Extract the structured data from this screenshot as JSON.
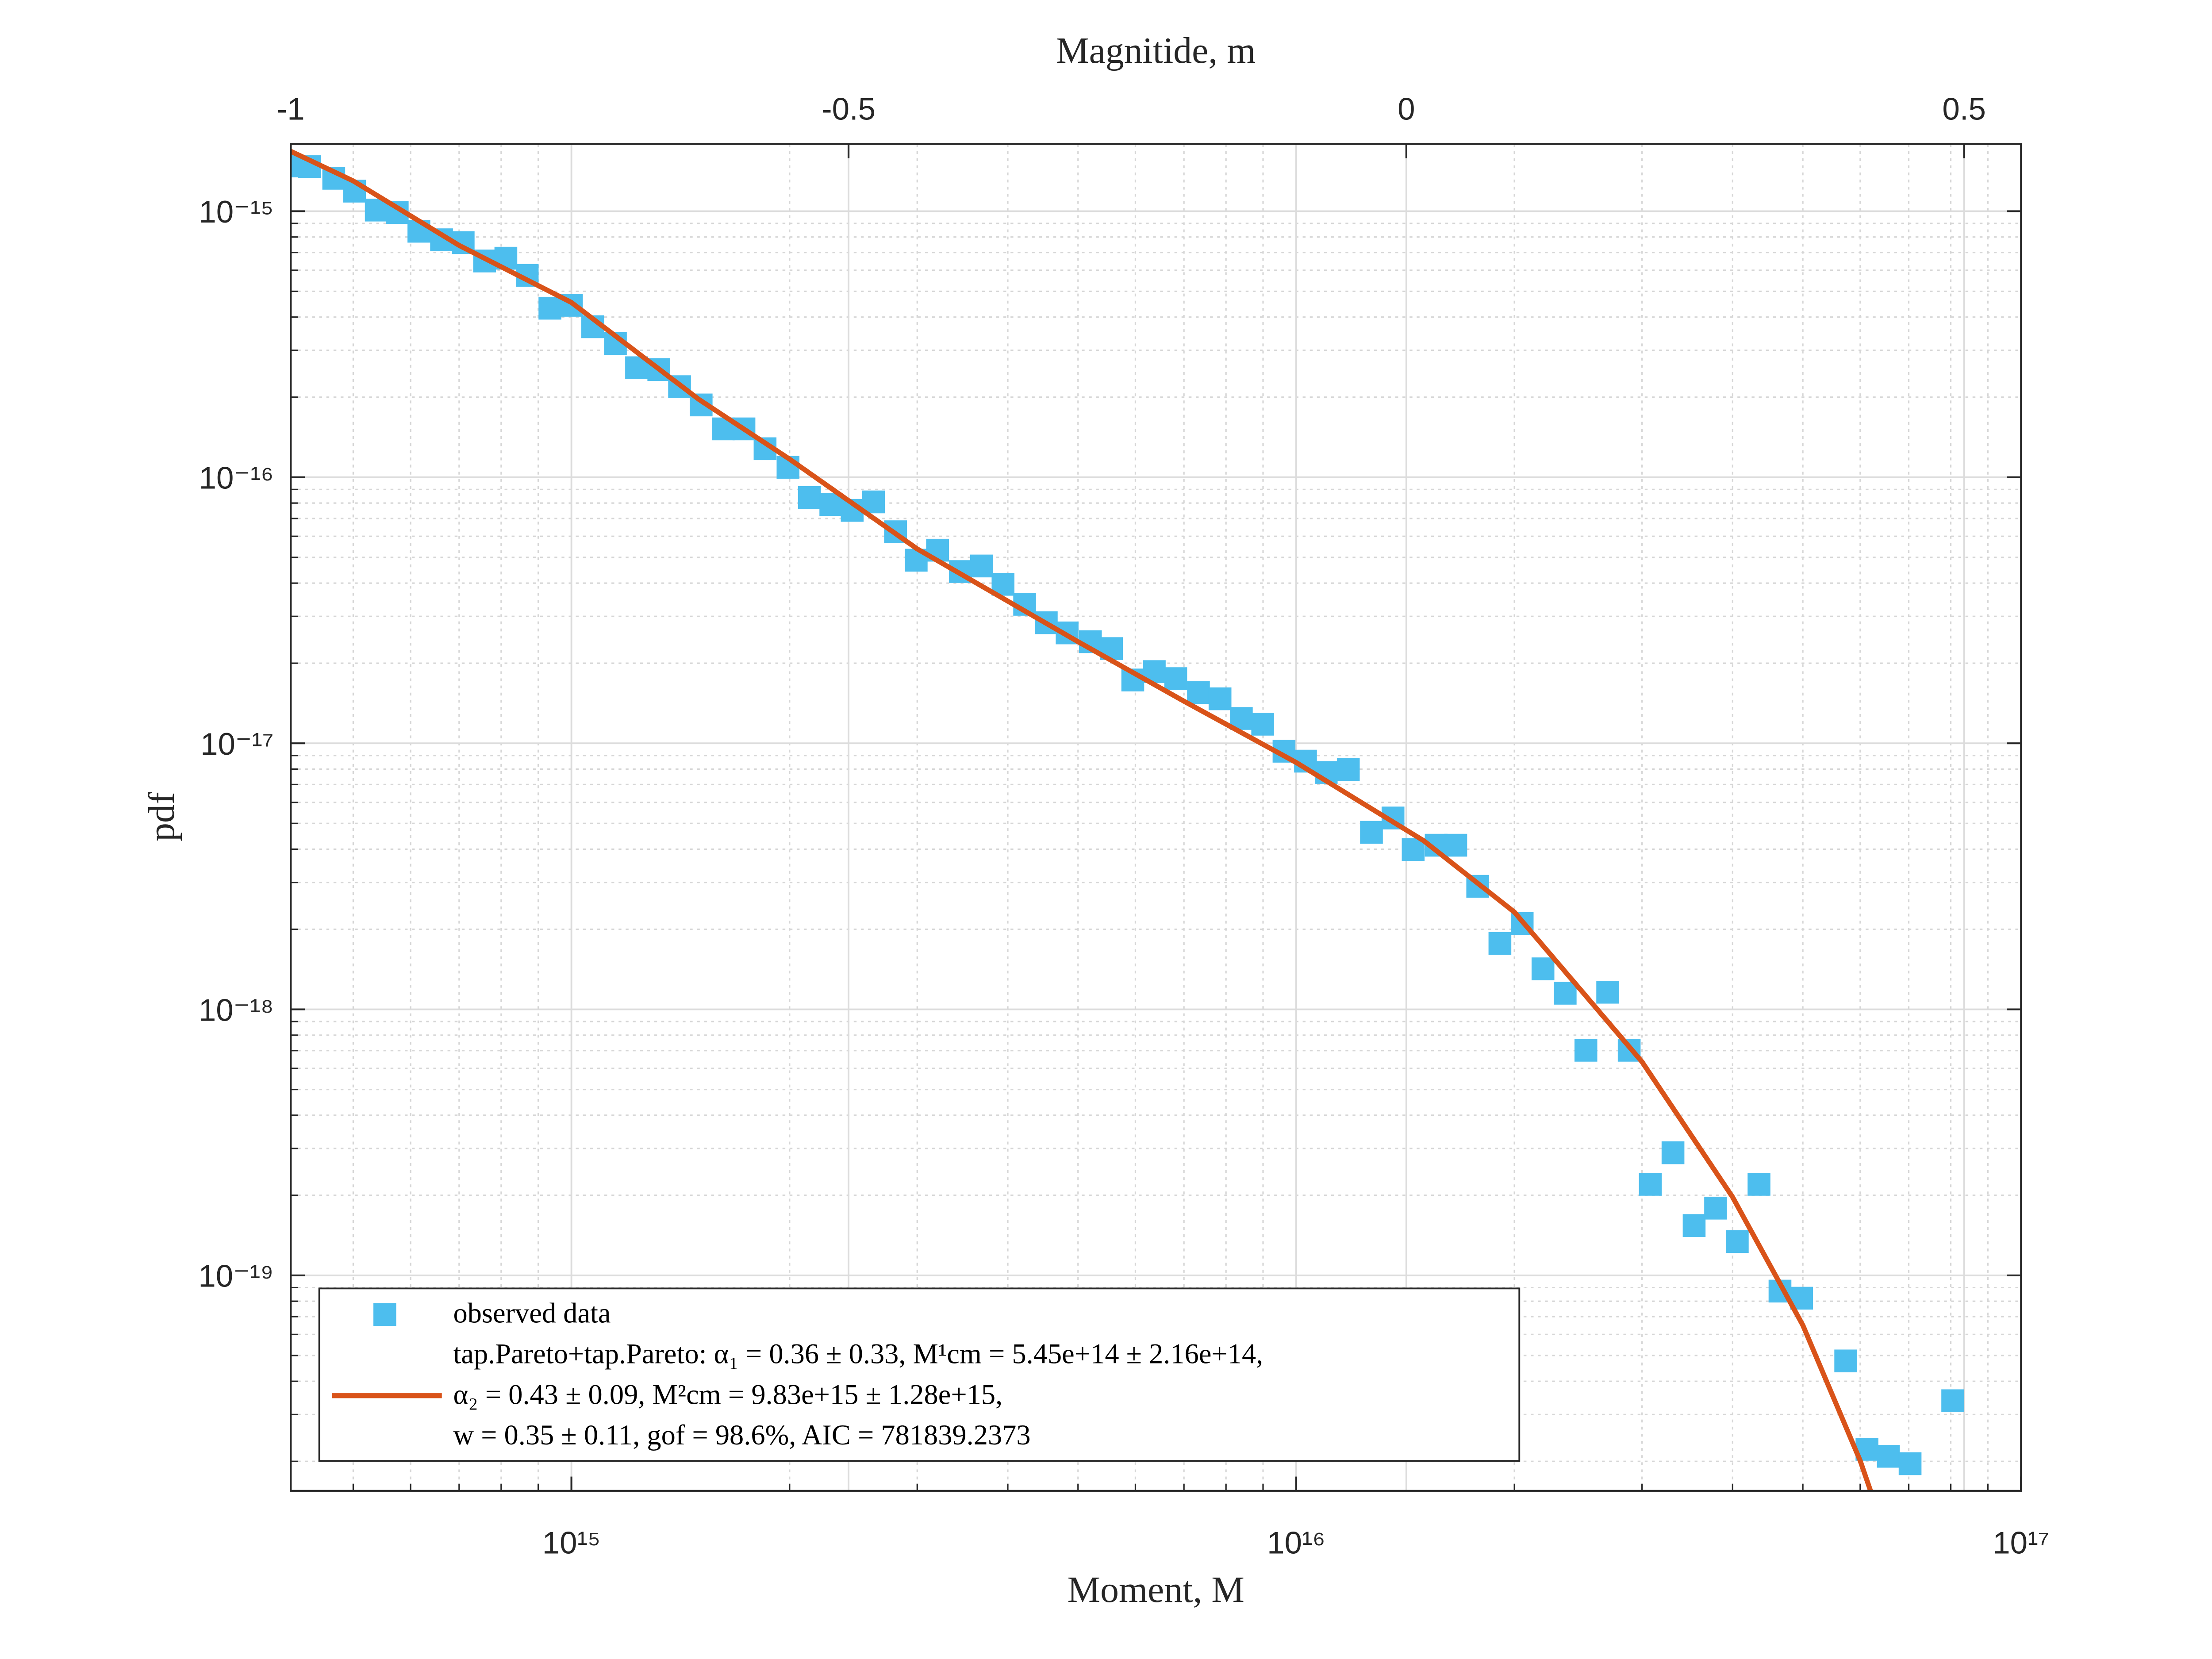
{
  "chart_data": {
    "type": "scatter",
    "xlabel": "Moment, M",
    "ylabel": "pdf",
    "x2label": "Magnitide, m",
    "xscale": "log",
    "yscale": "log",
    "grid": true,
    "minor_grid": true,
    "legend_loc": "lower left",
    "xlim": [
      410000000000000.0,
      1e+17
    ],
    "ylim": [
      1.55e-20,
      1.79e-15
    ],
    "xticks": [
      {
        "value": 1000000000000000.0,
        "label": "10¹⁵"
      },
      {
        "value": 1e+16,
        "label": "10¹⁶"
      },
      {
        "value": 1e+17,
        "label": "10¹⁷"
      }
    ],
    "yticks": [
      {
        "value": 1e-19,
        "label": "10⁻¹⁹"
      },
      {
        "value": 1e-18,
        "label": "10⁻¹⁸"
      },
      {
        "value": 1e-17,
        "label": "10⁻¹⁷"
      },
      {
        "value": 1e-16,
        "label": "10⁻¹⁶"
      },
      {
        "value": 1e-15,
        "label": "10⁻¹⁵"
      }
    ],
    "x2lim": [
      -1,
      0.551
    ],
    "x2ticks": [
      -1,
      -0.5,
      0,
      0.5
    ],
    "series": [
      {
        "name": "observed data",
        "type": "scatter",
        "marker": "square",
        "color": "#4DBEEE",
        "x": [
          410000000000000.0,
          435000000000000.0,
          470000000000000.0,
          502000000000000.0,
          538000000000000.0,
          575000000000000.0,
          616000000000000.0,
          662000000000000.0,
          709000000000000.0,
          759000000000000.0,
          812000000000000.0,
          869000000000000.0,
          934000000000000.0,
          1000000000000000.0,
          1070000000000000.0,
          1150000000000000.0,
          1230000000000000.0,
          1320000000000000.0,
          1410000000000000.0,
          1510000000000000.0,
          1620000000000000.0,
          1730000000000000.0,
          1850000000000000.0,
          1990000000000000.0,
          2130000000000000.0,
          2280000000000000.0,
          2440000000000000.0,
          2610000000000000.0,
          2800000000000000.0,
          2990000000000000.0,
          3200000000000000.0,
          3440000000000000.0,
          3680000000000000.0,
          3940000000000000.0,
          4220000000000000.0,
          4520000000000000.0,
          4830000000000000.0,
          5200000000000000.0,
          5560000000000000.0,
          5950000000000000.0,
          6370000000000000.0,
          6820000000000000.0,
          7330000000000000.0,
          7850000000000000.0,
          8400000000000000.0,
          8990000000000000.0,
          9620000000000000.0,
          1.03e+16,
          1.1e+16,
          1.18e+16,
          1.27e+16,
          1.36e+16,
          1.45e+16,
          1.56e+16,
          1.66e+16,
          1.78e+16,
          1.91e+16,
          2.05e+16,
          2.19e+16,
          2.35e+16,
          2.51e+16,
          2.69e+16,
          2.88e+16,
          3.08e+16,
          3.31e+16,
          3.54e+16,
          3.79e+16,
          4.06e+16,
          4.35e+16,
          4.65e+16,
          4.98e+16,
          5.73e+16,
          6.13e+16,
          6.56e+16,
          7.03e+16,
          8.05e+16
        ],
        "values": [
          1.48e-15,
          1.47e-15,
          1.33e-15,
          1.19e-15,
          1.01e-15,
          9.88e-16,
          8.41e-16,
          7.81e-16,
          7.62e-16,
          6.5e-16,
          6.66e-16,
          5.74e-16,
          4.32e-16,
          4.43e-16,
          3.68e-16,
          3.18e-16,
          2.58e-16,
          2.54e-16,
          2.19e-16,
          1.87e-16,
          1.52e-16,
          1.52e-16,
          1.28e-16,
          1.09e-16,
          8.39e-17,
          7.89e-17,
          7.51e-17,
          8.08e-17,
          6.24e-17,
          4.88e-17,
          5.32e-17,
          4.42e-17,
          4.64e-17,
          3.96e-17,
          3.33e-17,
          2.84e-17,
          2.6e-17,
          2.41e-17,
          2.27e-17,
          1.73e-17,
          1.86e-17,
          1.75e-17,
          1.55e-17,
          1.47e-17,
          1.24e-17,
          1.18e-17,
          9.34e-18,
          8.57e-18,
          7.77e-18,
          7.96e-18,
          4.63e-18,
          5.24e-18,
          3.99e-18,
          4.14e-18,
          4.14e-18,
          2.9e-18,
          1.77e-18,
          2.1e-18,
          1.42e-18,
          1.15e-18,
          7.02e-19,
          1.16e-18,
          7.02e-19,
          2.2e-19,
          2.89e-19,
          1.54e-19,
          1.79e-19,
          1.34e-19,
          2.2e-19,
          8.73e-20,
          8.21e-20,
          4.77e-20,
          2.22e-20,
          2.09e-20,
          1.96e-20,
          3.38e-20
        ]
      },
      {
        "name": "tap.Pareto+tap.Pareto: α₁ = 0.36 ± 0.33, M¹cm = 5.45e+14 ± 2.16e+14,\nα₂ = 0.43 ± 0.09, M²cm = 9.83e+15 ± 1.28e+15,\nw = 0.35 ± 0.11, gof = 98.6%, AIC = 781839.2373",
        "type": "line",
        "color": "#D95319",
        "x": [
          410000000000000.0,
          500000000000000.0,
          700000000000000.0,
          1000000000000000.0,
          1500000000000000.0,
          2000000000000000.0,
          3000000000000000.0,
          5000000000000000.0,
          7000000000000000.0,
          1e+16,
          1.5e+16,
          2e+16,
          3e+16,
          4e+16,
          5e+16,
          6e+16,
          6.2e+16
        ],
        "values": [
          1.68e-15,
          1.3e-15,
          7.44e-16,
          4.54e-16,
          1.96e-16,
          1.17e-16,
          5.38e-17,
          2.41e-17,
          1.44e-17,
          8.47e-18,
          4.3e-18,
          2.32e-18,
          6.35e-19,
          1.97e-19,
          6.5e-20,
          2.01e-20,
          1.55e-20
        ]
      }
    ]
  }
}
